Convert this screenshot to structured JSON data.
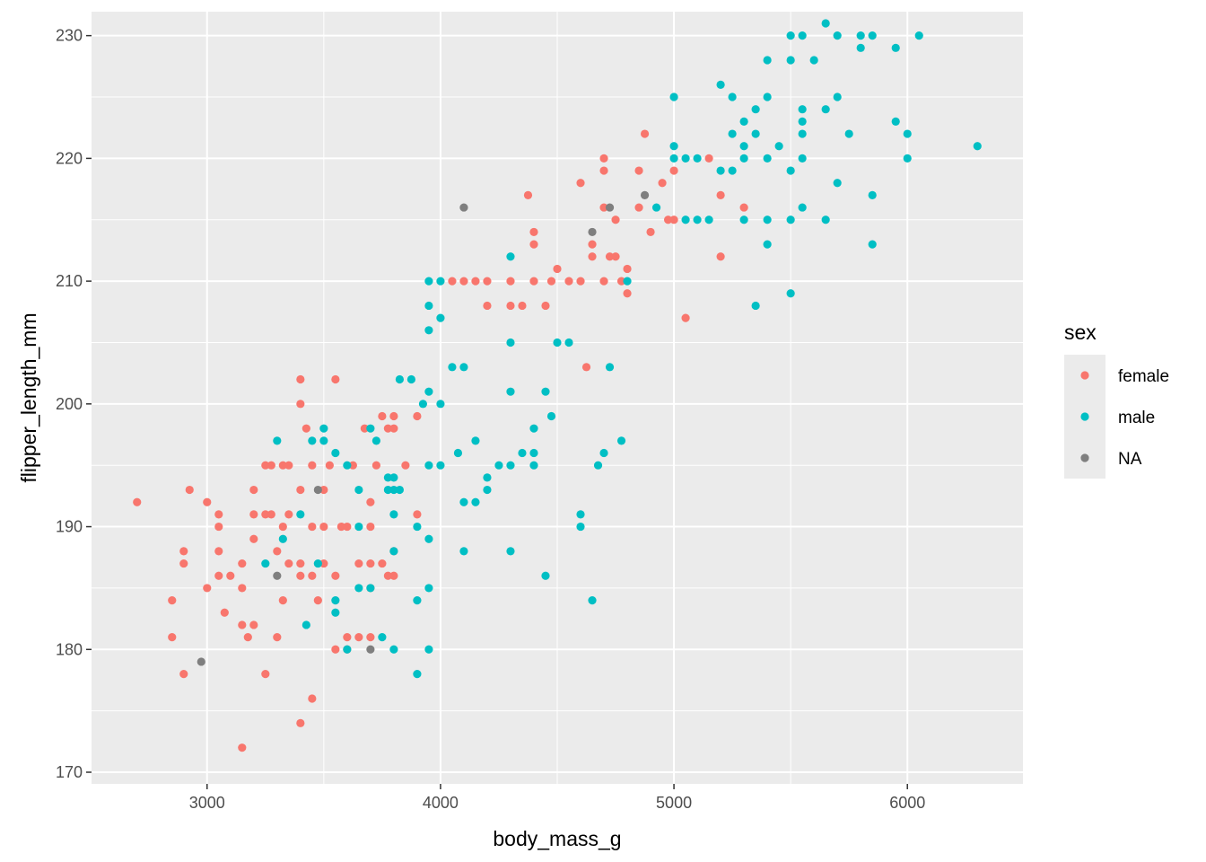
{
  "chart_data": {
    "type": "scatter",
    "xlabel": "body_mass_g",
    "ylabel": "flipper_length_mm",
    "xlim": [
      2505,
      6495
    ],
    "ylim": [
      169.05,
      231.95
    ],
    "x_ticks": [
      3000,
      4000,
      5000,
      6000
    ],
    "y_ticks": [
      170,
      180,
      190,
      200,
      210,
      220,
      230
    ],
    "grid": true,
    "background": "#ebebeb",
    "legend": {
      "title": "sex",
      "position": "right",
      "entries": [
        {
          "label": "female",
          "color": "#F8766D"
        },
        {
          "label": "male",
          "color": "#00BFC4"
        },
        {
          "label": "NA",
          "color": "#7F7F7F"
        }
      ]
    },
    "series": [
      {
        "name": "female",
        "color": "#F8766D",
        "points": [
          [
            2700,
            192
          ],
          [
            2850,
            184
          ],
          [
            2850,
            181
          ],
          [
            2900,
            178
          ],
          [
            2900,
            188
          ],
          [
            2900,
            187
          ],
          [
            2925,
            193
          ],
          [
            3000,
            185
          ],
          [
            3000,
            192
          ],
          [
            3050,
            191
          ],
          [
            3050,
            190
          ],
          [
            3050,
            188
          ],
          [
            3050,
            186
          ],
          [
            3075,
            183
          ],
          [
            3100,
            186
          ],
          [
            3150,
            185
          ],
          [
            3150,
            187
          ],
          [
            3150,
            182
          ],
          [
            3150,
            172
          ],
          [
            3175,
            181
          ],
          [
            3200,
            191
          ],
          [
            3200,
            193
          ],
          [
            3200,
            189
          ],
          [
            3200,
            182
          ],
          [
            3250,
            195
          ],
          [
            3250,
            191
          ],
          [
            3250,
            178
          ],
          [
            3275,
            191
          ],
          [
            3275,
            195
          ],
          [
            3300,
            181
          ],
          [
            3300,
            188
          ],
          [
            3325,
            190
          ],
          [
            3325,
            184
          ],
          [
            3325,
            195
          ],
          [
            3350,
            195
          ],
          [
            3350,
            191
          ],
          [
            3350,
            187
          ],
          [
            3400,
            193
          ],
          [
            3400,
            187
          ],
          [
            3400,
            200
          ],
          [
            3400,
            202
          ],
          [
            3400,
            186
          ],
          [
            3400,
            174
          ],
          [
            3425,
            198
          ],
          [
            3450,
            190
          ],
          [
            3450,
            195
          ],
          [
            3450,
            186
          ],
          [
            3450,
            176
          ],
          [
            3475,
            184
          ],
          [
            3500,
            193
          ],
          [
            3500,
            190
          ],
          [
            3500,
            187
          ],
          [
            3525,
            195
          ],
          [
            3550,
            202
          ],
          [
            3550,
            186
          ],
          [
            3550,
            180
          ],
          [
            3575,
            190
          ],
          [
            3600,
            190
          ],
          [
            3600,
            181
          ],
          [
            3600,
            180
          ],
          [
            3625,
            195
          ],
          [
            3650,
            187
          ],
          [
            3650,
            181
          ],
          [
            3675,
            198
          ],
          [
            3700,
            192
          ],
          [
            3700,
            190
          ],
          [
            3700,
            187
          ],
          [
            3700,
            185
          ],
          [
            3700,
            181
          ],
          [
            3725,
            195
          ],
          [
            3750,
            199
          ],
          [
            3750,
            187
          ],
          [
            3775,
            198
          ],
          [
            3775,
            186
          ],
          [
            3800,
            199
          ],
          [
            3800,
            198
          ],
          [
            3800,
            188
          ],
          [
            3800,
            186
          ],
          [
            3850,
            195
          ],
          [
            3900,
            191
          ],
          [
            3900,
            199
          ],
          [
            4050,
            210
          ],
          [
            4100,
            210
          ],
          [
            4150,
            210
          ],
          [
            4200,
            210
          ],
          [
            4200,
            208
          ],
          [
            4300,
            210
          ],
          [
            4300,
            208
          ],
          [
            4350,
            208
          ],
          [
            4375,
            217
          ],
          [
            4400,
            214
          ],
          [
            4400,
            213
          ],
          [
            4400,
            210
          ],
          [
            4450,
            208
          ],
          [
            4475,
            210
          ],
          [
            4500,
            211
          ],
          [
            4550,
            210
          ],
          [
            4600,
            218
          ],
          [
            4600,
            210
          ],
          [
            4625,
            203
          ],
          [
            4650,
            213
          ],
          [
            4650,
            212
          ],
          [
            4700,
            220
          ],
          [
            4700,
            219
          ],
          [
            4700,
            216
          ],
          [
            4700,
            210
          ],
          [
            4725,
            212
          ],
          [
            4750,
            215
          ],
          [
            4750,
            212
          ],
          [
            4775,
            210
          ],
          [
            4800,
            211
          ],
          [
            4800,
            209
          ],
          [
            4850,
            219
          ],
          [
            4850,
            216
          ],
          [
            4875,
            222
          ],
          [
            4900,
            214
          ],
          [
            4950,
            218
          ],
          [
            4975,
            215
          ],
          [
            5000,
            215
          ],
          [
            5000,
            219
          ],
          [
            5050,
            207
          ],
          [
            5150,
            220
          ],
          [
            5200,
            217
          ],
          [
            5200,
            212
          ],
          [
            5300,
            216
          ]
        ]
      },
      {
        "name": "male",
        "color": "#00BFC4",
        "points": [
          [
            3250,
            187
          ],
          [
            3300,
            197
          ],
          [
            3325,
            189
          ],
          [
            3400,
            191
          ],
          [
            3425,
            182
          ],
          [
            3450,
            197
          ],
          [
            3475,
            187
          ],
          [
            3500,
            198
          ],
          [
            3500,
            197
          ],
          [
            3550,
            196
          ],
          [
            3550,
            184
          ],
          [
            3550,
            183
          ],
          [
            3600,
            195
          ],
          [
            3600,
            180
          ],
          [
            3650,
            190
          ],
          [
            3650,
            193
          ],
          [
            3650,
            185
          ],
          [
            3700,
            198
          ],
          [
            3700,
            185
          ],
          [
            3725,
            197
          ],
          [
            3750,
            181
          ],
          [
            3775,
            194
          ],
          [
            3775,
            193
          ],
          [
            3800,
            194
          ],
          [
            3800,
            193
          ],
          [
            3800,
            191
          ],
          [
            3800,
            188
          ],
          [
            3800,
            180
          ],
          [
            3825,
            193
          ],
          [
            3825,
            202
          ],
          [
            3875,
            202
          ],
          [
            3900,
            184
          ],
          [
            3900,
            190
          ],
          [
            3900,
            178
          ],
          [
            3925,
            200
          ],
          [
            3950,
            210
          ],
          [
            3950,
            208
          ],
          [
            3950,
            206
          ],
          [
            3950,
            201
          ],
          [
            3950,
            195
          ],
          [
            3950,
            189
          ],
          [
            3950,
            185
          ],
          [
            3950,
            180
          ],
          [
            4000,
            210
          ],
          [
            4000,
            207
          ],
          [
            4000,
            200
          ],
          [
            4000,
            195
          ],
          [
            4050,
            203
          ],
          [
            4075,
            196
          ],
          [
            4100,
            203
          ],
          [
            4100,
            192
          ],
          [
            4100,
            188
          ],
          [
            4150,
            197
          ],
          [
            4150,
            192
          ],
          [
            4200,
            194
          ],
          [
            4200,
            193
          ],
          [
            4250,
            195
          ],
          [
            4300,
            212
          ],
          [
            4300,
            205
          ],
          [
            4300,
            201
          ],
          [
            4300,
            195
          ],
          [
            4300,
            188
          ],
          [
            4350,
            196
          ],
          [
            4400,
            196
          ],
          [
            4400,
            198
          ],
          [
            4400,
            195
          ],
          [
            4450,
            201
          ],
          [
            4450,
            186
          ],
          [
            4475,
            199
          ],
          [
            4500,
            205
          ],
          [
            4550,
            205
          ],
          [
            4600,
            191
          ],
          [
            4600,
            190
          ],
          [
            4650,
            184
          ],
          [
            4675,
            195
          ],
          [
            4700,
            196
          ],
          [
            4725,
            203
          ],
          [
            4775,
            197
          ],
          [
            4800,
            210
          ],
          [
            4925,
            216
          ],
          [
            5000,
            225
          ],
          [
            5000,
            220
          ],
          [
            5000,
            221
          ],
          [
            5050,
            215
          ],
          [
            5050,
            220
          ],
          [
            5100,
            215
          ],
          [
            5100,
            220
          ],
          [
            5150,
            215
          ],
          [
            5200,
            226
          ],
          [
            5200,
            219
          ],
          [
            5250,
            225
          ],
          [
            5250,
            222
          ],
          [
            5250,
            219
          ],
          [
            5300,
            220
          ],
          [
            5300,
            223
          ],
          [
            5300,
            221
          ],
          [
            5300,
            215
          ],
          [
            5350,
            222
          ],
          [
            5350,
            224
          ],
          [
            5350,
            208
          ],
          [
            5400,
            228
          ],
          [
            5400,
            225
          ],
          [
            5400,
            220
          ],
          [
            5400,
            215
          ],
          [
            5400,
            213
          ],
          [
            5450,
            221
          ],
          [
            5500,
            230
          ],
          [
            5500,
            228
          ],
          [
            5500,
            219
          ],
          [
            5500,
            215
          ],
          [
            5500,
            209
          ],
          [
            5550,
            230
          ],
          [
            5550,
            224
          ],
          [
            5550,
            223
          ],
          [
            5550,
            222
          ],
          [
            5550,
            220
          ],
          [
            5550,
            216
          ],
          [
            5600,
            228
          ],
          [
            5650,
            231
          ],
          [
            5650,
            224
          ],
          [
            5650,
            215
          ],
          [
            5700,
            230
          ],
          [
            5700,
            225
          ],
          [
            5700,
            218
          ],
          [
            5750,
            222
          ],
          [
            5800,
            229
          ],
          [
            5800,
            230
          ],
          [
            5850,
            230
          ],
          [
            5850,
            217
          ],
          [
            5850,
            213
          ],
          [
            5950,
            229
          ],
          [
            5950,
            223
          ],
          [
            6000,
            222
          ],
          [
            6000,
            220
          ],
          [
            6050,
            230
          ],
          [
            6300,
            221
          ]
        ]
      },
      {
        "name": "NA",
        "color": "#7F7F7F",
        "points": [
          [
            2975,
            179
          ],
          [
            3300,
            186
          ],
          [
            3475,
            193
          ],
          [
            3700,
            180
          ],
          [
            4100,
            216
          ],
          [
            4650,
            214
          ],
          [
            4725,
            216
          ],
          [
            4875,
            217
          ]
        ]
      }
    ]
  }
}
